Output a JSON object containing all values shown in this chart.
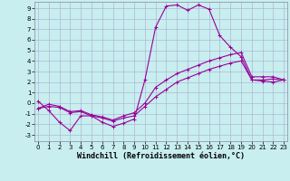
{
  "title": "",
  "xlabel": "Windchill (Refroidissement éolien,°C)",
  "bg_color": "#c8eef0",
  "line_color": "#990099",
  "grid_color": "#aaaacc",
  "x_ticks": [
    0,
    1,
    2,
    3,
    4,
    5,
    6,
    7,
    8,
    9,
    10,
    11,
    12,
    13,
    14,
    15,
    16,
    17,
    18,
    19,
    20,
    21,
    22,
    23
  ],
  "y_ticks": [
    -3,
    -2,
    -1,
    0,
    1,
    2,
    3,
    4,
    5,
    6,
    7,
    8,
    9
  ],
  "xlim": [
    -0.3,
    23.3
  ],
  "ylim": [
    -3.6,
    9.6
  ],
  "series": [
    [
      0.2,
      -0.7,
      -1.8,
      -2.6,
      -1.2,
      -1.2,
      -1.8,
      -2.2,
      -1.9,
      -1.5,
      2.2,
      7.2,
      9.2,
      9.3,
      8.8,
      9.3,
      8.9,
      6.4,
      5.3,
      4.4,
      2.2,
      2.1,
      2.0,
      2.2
    ],
    [
      -0.5,
      -0.3,
      -0.4,
      -0.9,
      -0.8,
      -1.2,
      -1.4,
      -1.7,
      -1.4,
      -1.2,
      -0.3,
      0.6,
      1.3,
      2.0,
      2.4,
      2.8,
      3.2,
      3.5,
      3.8,
      4.0,
      2.2,
      2.2,
      2.3,
      2.2
    ],
    [
      -0.5,
      -0.1,
      -0.3,
      -0.8,
      -0.7,
      -1.1,
      -1.3,
      -1.6,
      -1.2,
      -0.9,
      0.0,
      1.5,
      2.2,
      2.8,
      3.2,
      3.6,
      4.0,
      4.3,
      4.6,
      4.8,
      2.5,
      2.5,
      2.5,
      2.2
    ]
  ],
  "marker": "+",
  "markersize": 3,
  "linewidth": 0.8,
  "tick_fontsize": 5,
  "label_fontsize": 6,
  "spine_color": "#888899"
}
